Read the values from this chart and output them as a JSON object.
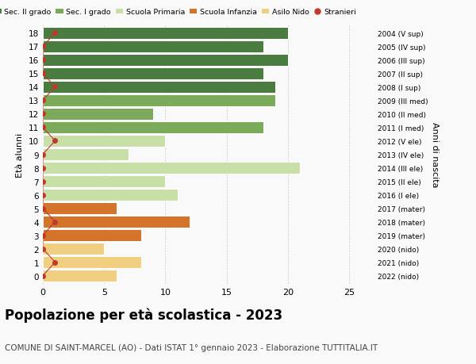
{
  "ages": [
    18,
    17,
    16,
    15,
    14,
    13,
    12,
    11,
    10,
    9,
    8,
    7,
    6,
    5,
    4,
    3,
    2,
    1,
    0
  ],
  "years": [
    "2004 (V sup)",
    "2005 (IV sup)",
    "2006 (III sup)",
    "2007 (II sup)",
    "2008 (I sup)",
    "2009 (III med)",
    "2010 (II med)",
    "2011 (I med)",
    "2012 (V ele)",
    "2013 (IV ele)",
    "2014 (III ele)",
    "2015 (II ele)",
    "2016 (I ele)",
    "2017 (mater)",
    "2018 (mater)",
    "2019 (mater)",
    "2020 (nido)",
    "2021 (nido)",
    "2022 (nido)"
  ],
  "bar_values": [
    20,
    18,
    20,
    18,
    19,
    19,
    9,
    18,
    10,
    7,
    21,
    10,
    11,
    6,
    12,
    8,
    5,
    8,
    6
  ],
  "bar_colors": [
    "#4a7c3f",
    "#4a7c3f",
    "#4a7c3f",
    "#4a7c3f",
    "#4a7c3f",
    "#7aaa5a",
    "#7aaa5a",
    "#7aaa5a",
    "#c8dfa8",
    "#c8dfa8",
    "#c8dfa8",
    "#c8dfa8",
    "#c8dfa8",
    "#d4732a",
    "#d4732a",
    "#d4732a",
    "#f0d080",
    "#f0d080",
    "#f0d080"
  ],
  "stranieri_x": [
    1,
    0,
    0,
    0,
    1,
    0,
    0,
    0,
    1,
    0,
    0,
    0,
    0,
    0,
    1,
    0,
    0,
    1,
    0
  ],
  "title": "Popolazione per età scolastica - 2023",
  "subtitle": "COMUNE DI SAINT-MARCEL (AO) - Dati ISTAT 1° gennaio 2023 - Elaborazione TUTTITALIA.IT",
  "ylabel": "Età alunni",
  "ylabel2": "Anni di nascita",
  "xlim": [
    0,
    27
  ],
  "xticks": [
    0,
    5,
    10,
    15,
    20,
    25
  ],
  "legend_labels": [
    "Sec. II grado",
    "Sec. I grado",
    "Scuola Primaria",
    "Scuola Infanzia",
    "Asilo Nido",
    "Stranieri"
  ],
  "legend_colors": [
    "#4a7c3f",
    "#7aaa5a",
    "#c8dfa8",
    "#d4732a",
    "#f0d080",
    "#c0392b"
  ],
  "bg_color": "#f9f9f9",
  "bar_edge_color": "white",
  "grid_color": "#cccccc",
  "stranieri_color": "#c0392b",
  "title_fontsize": 12,
  "subtitle_fontsize": 7.5
}
